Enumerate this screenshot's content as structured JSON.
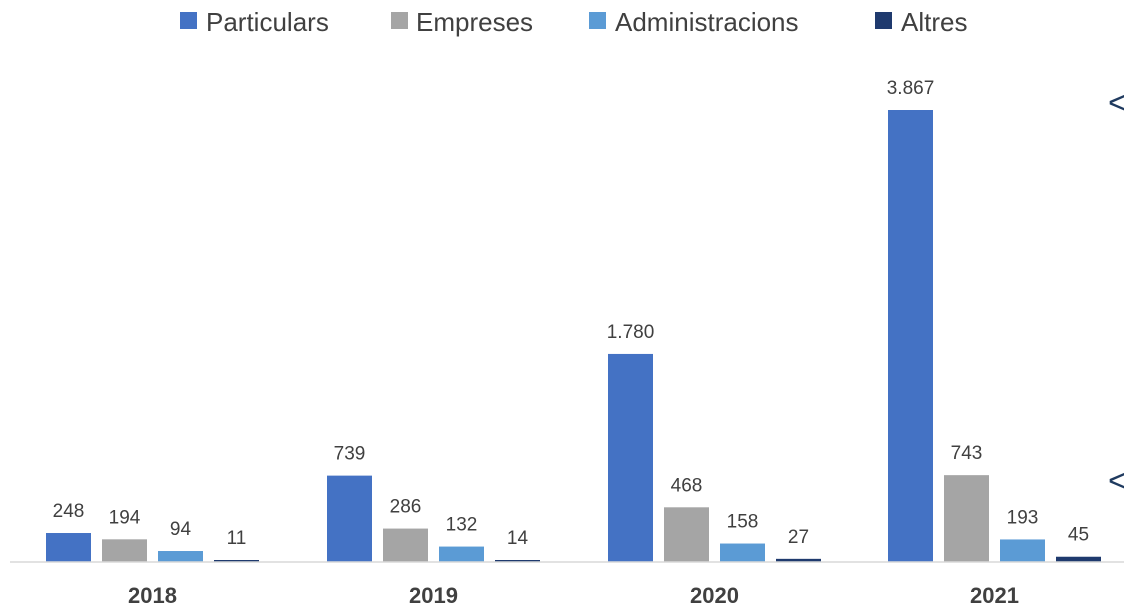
{
  "chart_data": {
    "type": "bar",
    "categories": [
      "2018",
      "2019",
      "2020",
      "2021"
    ],
    "series": [
      {
        "name": "Particulars",
        "color": "#4472c4",
        "values": [
          248,
          739,
          1780,
          3867
        ],
        "labels": [
          "248",
          "739",
          "1.780",
          "3.867"
        ]
      },
      {
        "name": "Empreses",
        "color": "#a5a5a5",
        "values": [
          194,
          286,
          468,
          743
        ],
        "labels": [
          "194",
          "286",
          "468",
          "743"
        ]
      },
      {
        "name": "Administracions",
        "color": "#5b9bd5",
        "values": [
          94,
          132,
          158,
          193
        ],
        "labels": [
          "94",
          "132",
          "158",
          "193"
        ]
      },
      {
        "name": "Altres",
        "color": "#1f3a6e",
        "values": [
          11,
          14,
          27,
          45
        ],
        "labels": [
          "11",
          "14",
          "27",
          "45"
        ]
      }
    ],
    "ylim": [
      0,
      3867
    ],
    "legend_position": "top",
    "grid": false,
    "side_marks": [
      "<",
      "<"
    ]
  }
}
